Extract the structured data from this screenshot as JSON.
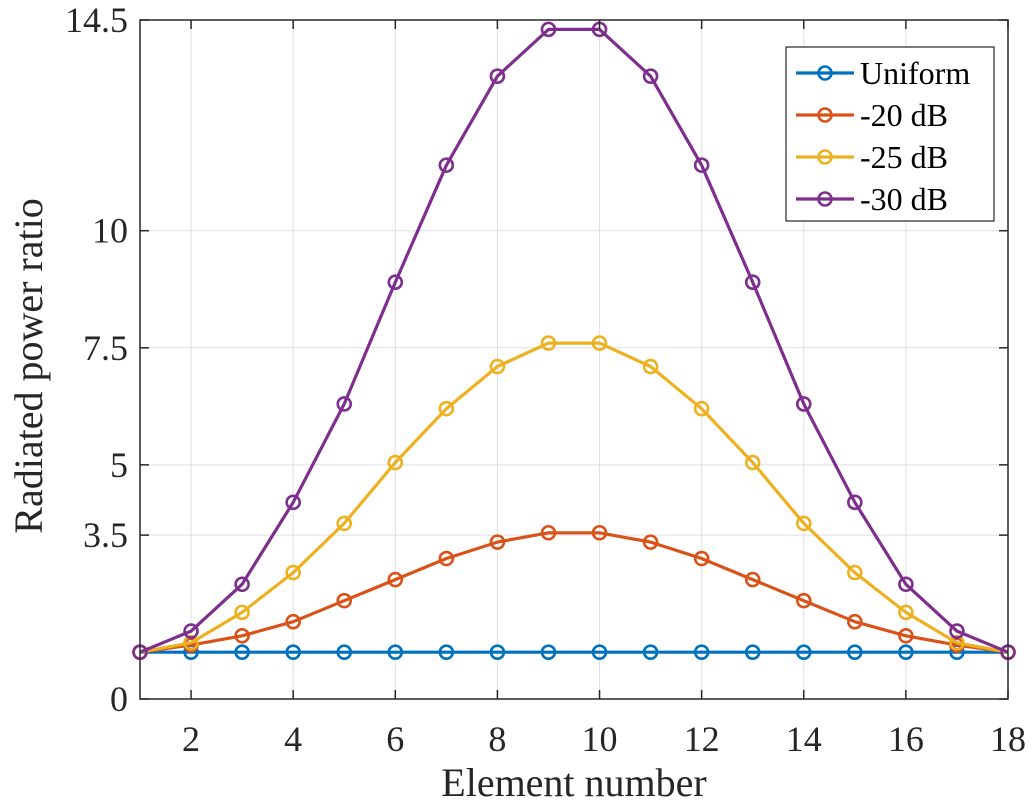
{
  "chart_data": {
    "type": "line",
    "xlabel": "Element number",
    "ylabel": "Radiated power ratio",
    "xlim": [
      1,
      18
    ],
    "ylim": [
      0,
      14.5
    ],
    "xticks": [
      2,
      4,
      6,
      8,
      10,
      12,
      14,
      16,
      18
    ],
    "yticks": [
      0,
      3.5,
      5,
      7.5,
      10,
      14.5
    ],
    "ytick_labels": [
      "0",
      "3.5",
      "5",
      "7.5",
      "10",
      "14.5"
    ],
    "grid": true,
    "legend_position": "top-right",
    "x": [
      1,
      2,
      3,
      4,
      5,
      6,
      7,
      8,
      9,
      10,
      11,
      12,
      13,
      14,
      15,
      16,
      17,
      18
    ],
    "series": [
      {
        "name": "Uniform",
        "color": "#0072BD",
        "marker": "circle",
        "values": [
          1,
          1,
          1,
          1,
          1,
          1,
          1,
          1,
          1,
          1,
          1,
          1,
          1,
          1,
          1,
          1,
          1,
          1
        ]
      },
      {
        "name": "-20 dB",
        "color": "#D95319",
        "marker": "circle",
        "values": [
          1,
          1.15,
          1.35,
          1.65,
          2.1,
          2.55,
          3.0,
          3.35,
          3.55,
          3.55,
          3.35,
          3.0,
          2.55,
          2.1,
          1.65,
          1.35,
          1.15,
          1
        ]
      },
      {
        "name": "-25 dB",
        "color": "#EDB120",
        "marker": "circle",
        "values": [
          1,
          1.2,
          1.85,
          2.7,
          3.75,
          5.05,
          6.2,
          7.1,
          7.6,
          7.6,
          7.1,
          6.2,
          5.05,
          3.75,
          2.7,
          1.85,
          1.2,
          1
        ]
      },
      {
        "name": "-30 dB",
        "color": "#7E2F8E",
        "marker": "circle",
        "values": [
          1,
          1.45,
          2.45,
          4.2,
          6.3,
          8.9,
          11.4,
          13.3,
          14.3,
          14.3,
          13.3,
          11.4,
          8.9,
          6.3,
          4.2,
          2.45,
          1.45,
          1
        ]
      }
    ]
  }
}
